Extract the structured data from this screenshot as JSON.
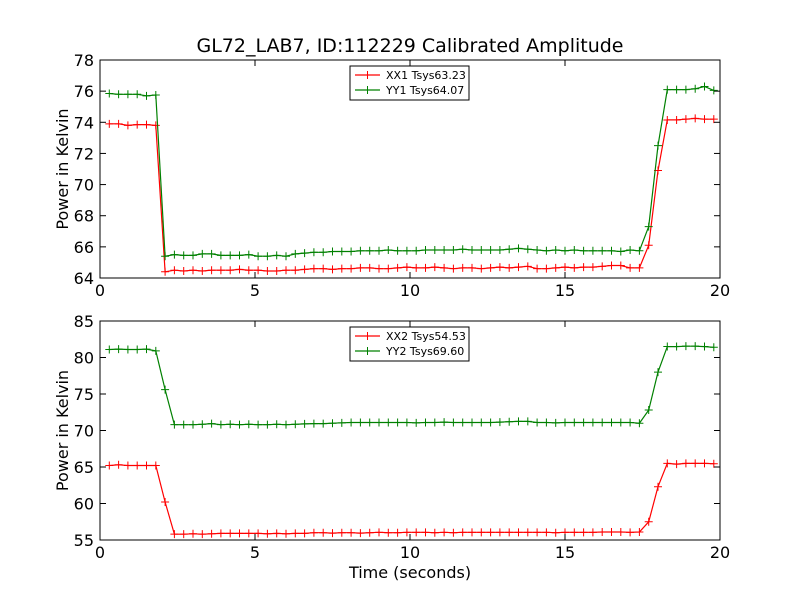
{
  "figure": {
    "title": "GL72_LAB7, ID:112229 Calibrated Amplitude"
  },
  "chart_data": [
    {
      "type": "line",
      "title": "GL72_LAB7, ID:112229 Calibrated Amplitude",
      "xlabel": "",
      "ylabel": "Power in Kelvin",
      "xlim": [
        0,
        20
      ],
      "ylim": [
        64,
        78
      ],
      "xticks": [
        "0",
        "5",
        "10",
        "15",
        "20"
      ],
      "yticks": [
        "64",
        "66",
        "68",
        "70",
        "72",
        "74",
        "76",
        "78"
      ],
      "legend_position": "top-center",
      "grid": false,
      "x": [
        0.3,
        0.6,
        0.9,
        1.2,
        1.5,
        1.8,
        2.1,
        2.4,
        2.7,
        3.0,
        3.3,
        3.6,
        3.9,
        4.2,
        4.5,
        4.8,
        5.1,
        5.4,
        5.7,
        6.0,
        6.3,
        6.6,
        6.9,
        7.2,
        7.5,
        7.8,
        8.1,
        8.4,
        8.7,
        9.0,
        9.3,
        9.6,
        9.9,
        10.2,
        10.5,
        10.8,
        11.1,
        11.4,
        11.7,
        12.0,
        12.3,
        12.6,
        12.9,
        13.2,
        13.5,
        13.8,
        14.1,
        14.4,
        14.7,
        15.0,
        15.3,
        15.6,
        15.9,
        16.2,
        16.5,
        16.8,
        17.1,
        17.4,
        17.7,
        18.0,
        18.3,
        18.6,
        18.9,
        19.2,
        19.5,
        19.8
      ],
      "series": [
        {
          "name": "XX1 Tsys63.23",
          "color": "#ff0000",
          "values": [
            73.9,
            73.9,
            73.8,
            73.85,
            73.85,
            73.8,
            64.4,
            64.5,
            64.45,
            64.5,
            64.45,
            64.5,
            64.5,
            64.5,
            64.55,
            64.5,
            64.5,
            64.45,
            64.45,
            64.5,
            64.5,
            64.55,
            64.6,
            64.6,
            64.55,
            64.6,
            64.6,
            64.65,
            64.65,
            64.6,
            64.6,
            64.65,
            64.7,
            64.65,
            64.65,
            64.7,
            64.65,
            64.6,
            64.65,
            64.65,
            64.6,
            64.65,
            64.7,
            64.65,
            64.7,
            64.75,
            64.6,
            64.6,
            64.65,
            64.7,
            64.65,
            64.7,
            64.7,
            64.75,
            64.8,
            64.8,
            64.65,
            64.65,
            66.1,
            70.9,
            74.15,
            74.15,
            74.2,
            74.25,
            74.2,
            74.2
          ]
        },
        {
          "name": "YY1 Tsys64.07",
          "color": "#008000",
          "values": [
            75.85,
            75.8,
            75.8,
            75.8,
            75.7,
            75.75,
            65.4,
            65.5,
            65.45,
            65.45,
            65.55,
            65.55,
            65.45,
            65.45,
            65.45,
            65.5,
            65.4,
            65.4,
            65.45,
            65.4,
            65.55,
            65.6,
            65.65,
            65.65,
            65.7,
            65.7,
            65.7,
            65.75,
            65.75,
            65.75,
            65.8,
            65.75,
            65.75,
            65.75,
            65.8,
            65.8,
            65.8,
            65.8,
            65.85,
            65.8,
            65.8,
            65.8,
            65.8,
            65.85,
            65.9,
            65.85,
            65.8,
            65.75,
            65.8,
            65.75,
            65.8,
            65.75,
            65.75,
            65.75,
            65.75,
            65.7,
            65.8,
            65.75,
            67.3,
            72.5,
            76.1,
            76.1,
            76.1,
            76.15,
            76.3,
            76.05
          ]
        }
      ]
    },
    {
      "type": "line",
      "title": "",
      "xlabel": "Time (seconds)",
      "ylabel": "Power in Kelvin",
      "xlim": [
        0,
        20
      ],
      "ylim": [
        55,
        85
      ],
      "xticks": [
        "0",
        "5",
        "10",
        "15",
        "20"
      ],
      "yticks": [
        "55",
        "60",
        "65",
        "70",
        "75",
        "80",
        "85"
      ],
      "legend_position": "top-center",
      "grid": false,
      "x": [
        0.3,
        0.6,
        0.9,
        1.2,
        1.5,
        1.8,
        2.1,
        2.4,
        2.7,
        3.0,
        3.3,
        3.6,
        3.9,
        4.2,
        4.5,
        4.8,
        5.1,
        5.4,
        5.7,
        6.0,
        6.3,
        6.6,
        6.9,
        7.2,
        7.5,
        7.8,
        8.1,
        8.4,
        8.7,
        9.0,
        9.3,
        9.6,
        9.9,
        10.2,
        10.5,
        10.8,
        11.1,
        11.4,
        11.7,
        12.0,
        12.3,
        12.6,
        12.9,
        13.2,
        13.5,
        13.8,
        14.1,
        14.4,
        14.7,
        15.0,
        15.3,
        15.6,
        15.9,
        16.2,
        16.5,
        16.8,
        17.1,
        17.4,
        17.7,
        18.0,
        18.3,
        18.6,
        18.9,
        19.2,
        19.5,
        19.8
      ],
      "series": [
        {
          "name": "XX2 Tsys54.53",
          "color": "#ff0000",
          "values": [
            65.2,
            65.3,
            65.2,
            65.2,
            65.2,
            65.2,
            60.2,
            55.8,
            55.8,
            55.85,
            55.8,
            55.85,
            55.9,
            55.9,
            55.9,
            55.9,
            55.9,
            55.85,
            55.9,
            55.85,
            55.9,
            55.9,
            56.0,
            56.0,
            55.95,
            56.0,
            56.0,
            55.95,
            56.0,
            56.05,
            56.0,
            56.0,
            56.05,
            56.05,
            56.05,
            56.0,
            56.05,
            56.0,
            56.05,
            56.05,
            56.05,
            56.05,
            56.05,
            56.05,
            56.05,
            56.05,
            56.05,
            56.05,
            56.0,
            56.05,
            56.05,
            56.05,
            56.05,
            56.1,
            56.1,
            56.1,
            56.05,
            56.1,
            57.5,
            62.3,
            65.5,
            65.4,
            65.5,
            65.5,
            65.5,
            65.45
          ]
        },
        {
          "name": "YY2 Tsys69.60",
          "color": "#008000",
          "values": [
            81.1,
            81.15,
            81.1,
            81.1,
            81.15,
            80.9,
            75.6,
            70.8,
            70.8,
            70.8,
            70.85,
            70.95,
            70.8,
            70.85,
            70.8,
            70.85,
            70.8,
            70.8,
            70.85,
            70.8,
            70.85,
            70.9,
            70.95,
            70.95,
            71.0,
            71.05,
            71.1,
            71.1,
            71.1,
            71.1,
            71.1,
            71.1,
            71.1,
            71.05,
            71.1,
            71.1,
            71.15,
            71.1,
            71.1,
            71.1,
            71.1,
            71.1,
            71.15,
            71.2,
            71.25,
            71.25,
            71.1,
            71.1,
            71.05,
            71.1,
            71.1,
            71.1,
            71.1,
            71.1,
            71.1,
            71.1,
            71.1,
            71.0,
            72.8,
            78.0,
            81.5,
            81.5,
            81.55,
            81.55,
            81.5,
            81.4
          ]
        }
      ]
    }
  ]
}
